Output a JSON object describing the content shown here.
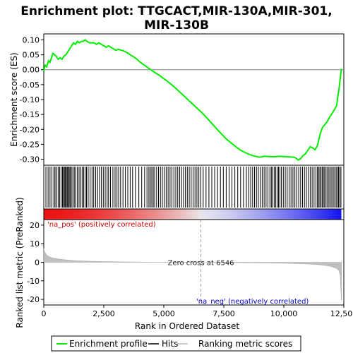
{
  "chart_data": {
    "type": "line",
    "title": "Enrichment plot: TTGCACT,MIR-130A,MIR-301,MIR-130B",
    "xlabel": "Rank in Ordered Dataset",
    "ylabel_top": "Enrichment score (ES)",
    "ylabel_bottom": "Ranked list metric (PreRanked)",
    "xlim": [
      0,
      12500
    ],
    "xticks": [
      0,
      2500,
      5000,
      7500,
      10000,
      12500
    ],
    "xtick_labels": [
      "0",
      "2,500",
      "5,000",
      "7,500",
      "10,000",
      "12,500"
    ],
    "es_ylim": [
      -0.32,
      0.12
    ],
    "es_yticks": [
      0.1,
      0.05,
      0.0,
      -0.05,
      -0.1,
      -0.15,
      -0.2,
      -0.25,
      -0.3
    ],
    "es_ytick_labels": [
      "0.10",
      "0.05",
      "0.00",
      "-0.05",
      "-0.10",
      "-0.15",
      "-0.20",
      "-0.25",
      "-0.30"
    ],
    "metric_ylim": [
      -23,
      23
    ],
    "metric_yticks": [
      20,
      10,
      0,
      -10,
      -20
    ],
    "metric_ytick_labels": [
      "20",
      "10",
      "0",
      "-10",
      "-20"
    ],
    "zero_cross_rank": 6546,
    "zero_cross_label": "Zero cross at 6546",
    "pos_label": "'na_pos' (positively correlated)",
    "neg_label": "'na_neg' (negatively correlated)",
    "series": [
      {
        "name": "Enrichment profile",
        "color": "#00ee00",
        "x": [
          0,
          60,
          120,
          200,
          260,
          320,
          380,
          450,
          520,
          600,
          680,
          760,
          840,
          920,
          1000,
          1080,
          1160,
          1240,
          1320,
          1400,
          1480,
          1560,
          1640,
          1720,
          1800,
          1900,
          2000,
          2100,
          2200,
          2300,
          2400,
          2500,
          2600,
          2700,
          2800,
          2900,
          3000,
          3100,
          3200,
          3300,
          3400,
          3500,
          3600,
          3700,
          3800,
          3900,
          4000,
          4200,
          4400,
          4600,
          4800,
          5000,
          5200,
          5400,
          5600,
          5800,
          6000,
          6200,
          6400,
          6600,
          6800,
          7000,
          7200,
          7400,
          7600,
          7800,
          8000,
          8200,
          8400,
          8600,
          8800,
          9000,
          9200,
          9400,
          9600,
          9800,
          10000,
          10200,
          10400,
          10500,
          10600,
          10700,
          10800,
          10900,
          11000,
          11100,
          11200,
          11300,
          11400,
          11500,
          11600,
          11700,
          11800,
          11900,
          12000,
          12100,
          12200,
          12250,
          12300,
          12350,
          12400
        ],
        "y": [
          -0.005,
          0.015,
          0.01,
          0.03,
          0.025,
          0.04,
          0.055,
          0.05,
          0.045,
          0.035,
          0.04,
          0.035,
          0.045,
          0.05,
          0.06,
          0.07,
          0.08,
          0.09,
          0.085,
          0.095,
          0.09,
          0.095,
          0.095,
          0.1,
          0.095,
          0.09,
          0.09,
          0.09,
          0.085,
          0.09,
          0.085,
          0.08,
          0.075,
          0.08,
          0.075,
          0.07,
          0.065,
          0.068,
          0.066,
          0.064,
          0.06,
          0.056,
          0.05,
          0.045,
          0.04,
          0.034,
          0.026,
          0.015,
          0.003,
          -0.008,
          -0.018,
          -0.03,
          -0.042,
          -0.055,
          -0.07,
          -0.085,
          -0.1,
          -0.115,
          -0.13,
          -0.145,
          -0.162,
          -0.18,
          -0.198,
          -0.215,
          -0.232,
          -0.245,
          -0.258,
          -0.27,
          -0.278,
          -0.285,
          -0.29,
          -0.293,
          -0.29,
          -0.291,
          -0.292,
          -0.29,
          -0.291,
          -0.292,
          -0.293,
          -0.296,
          -0.303,
          -0.298,
          -0.288,
          -0.282,
          -0.27,
          -0.258,
          -0.262,
          -0.268,
          -0.255,
          -0.22,
          -0.195,
          -0.185,
          -0.175,
          -0.16,
          -0.148,
          -0.135,
          -0.12,
          -0.09,
          -0.065,
          -0.03,
          0.003
        ]
      },
      {
        "name": "Hits",
        "color": "#000000",
        "hit_ranks": [
          90,
          180,
          260,
          340,
          420,
          470,
          540,
          600,
          660,
          720,
          780,
          820,
          860,
          900,
          940,
          980,
          1020,
          1060,
          1100,
          1150,
          1210,
          1270,
          1330,
          1400,
          1470,
          1540,
          1600,
          1660,
          1720,
          1780,
          1850,
          1930,
          2010,
          2080,
          2160,
          2240,
          2320,
          2400,
          2480,
          2560,
          2640,
          2700,
          2780,
          2880,
          2970,
          3050,
          3120,
          3200,
          3300,
          3400,
          3500,
          3600,
          3700,
          3820,
          3960,
          4080,
          4200,
          4300,
          4380,
          4440,
          4500,
          4560,
          4620,
          4700,
          4780,
          4860,
          4940,
          5020,
          5100,
          5180,
          5260,
          5340,
          5420,
          5500,
          5580,
          5660,
          5740,
          5820,
          5900,
          5980,
          6060,
          6140,
          6220,
          6300,
          6380,
          6460,
          6540,
          6640,
          6760,
          6880,
          7000,
          7120,
          7240,
          7360,
          7480,
          7600,
          7720,
          7840,
          7960,
          8080,
          8200,
          8320,
          8440,
          8540,
          8620,
          8700,
          8780,
          8860,
          8940,
          9020,
          9100,
          9180,
          9260,
          9340,
          9420,
          9480,
          9540,
          9600,
          9660,
          9720,
          9780,
          9840,
          9900,
          9980,
          10060,
          10140,
          10220,
          10300,
          10380,
          10460,
          10540,
          10620,
          10700,
          10780,
          10860,
          10940,
          11020,
          11100,
          11180,
          11260,
          11340,
          11400,
          11450,
          11500,
          11550,
          11600,
          11650,
          11700,
          11760,
          11820,
          11880,
          11940,
          12000,
          12060,
          12120,
          12180,
          12230,
          12280,
          12330,
          12380
        ]
      },
      {
        "name": "Ranking metric scores",
        "color": "#b0b0b0",
        "x": [
          0,
          30,
          80,
          150,
          250,
          400,
          600,
          900,
          1300,
          1800,
          2500,
          3300,
          4200,
          5200,
          6000,
          6546,
          7200,
          8000,
          9000,
          10000,
          10800,
          11400,
          11800,
          12050,
          12200,
          12300,
          12350,
          12400
        ],
        "y": [
          7.5,
          6,
          4.5,
          3.5,
          2.8,
          2.2,
          1.8,
          1.3,
          0.9,
          0.6,
          0.35,
          0.2,
          0.1,
          0.04,
          0.01,
          0.0,
          -0.05,
          -0.15,
          -0.3,
          -0.5,
          -0.8,
          -1.2,
          -1.8,
          -2.5,
          -3.3,
          -4.5,
          -7,
          -21
        ]
      }
    ],
    "legend": {
      "placement": "bottom",
      "entries": [
        "Enrichment profile",
        "Hits",
        "Ranking metric scores"
      ]
    }
  }
}
